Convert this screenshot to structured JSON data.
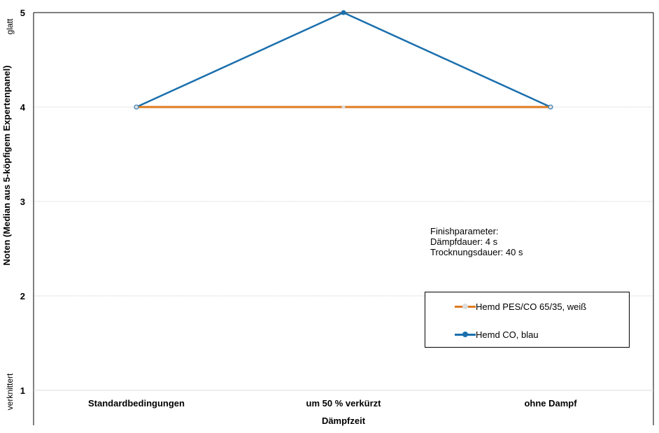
{
  "chart_data": {
    "type": "line",
    "categories": [
      "Standardbedingungen",
      "um 50 % verkürzt",
      "ohne Dampf"
    ],
    "series": [
      {
        "name": "Hemd PES/CO 65/35, weiß",
        "values": [
          4,
          4,
          4
        ],
        "color": "#e07a1f",
        "marker_color": "#dddddd"
      },
      {
        "name": "Hemd CO, blau",
        "values": [
          4,
          5,
          4
        ],
        "color": "#1a6fae",
        "marker_color": "#1a6fae"
      }
    ],
    "xlabel": "Dämpfzeit",
    "ylabel": "Noten (Median aus 5-köpfigem Expertenpanel)",
    "ylim": [
      1,
      5
    ],
    "yticks": [
      "1",
      "2",
      "3",
      "4",
      "5"
    ],
    "y_top_label": "glatt",
    "y_bottom_label": "verknittert",
    "grid": true,
    "legend_position": "bottom-right"
  },
  "annotation": {
    "lines": [
      "Finishparameter:",
      "Dämpfdauer: 4 s",
      "Trocknungsdauer: 40 s"
    ]
  }
}
